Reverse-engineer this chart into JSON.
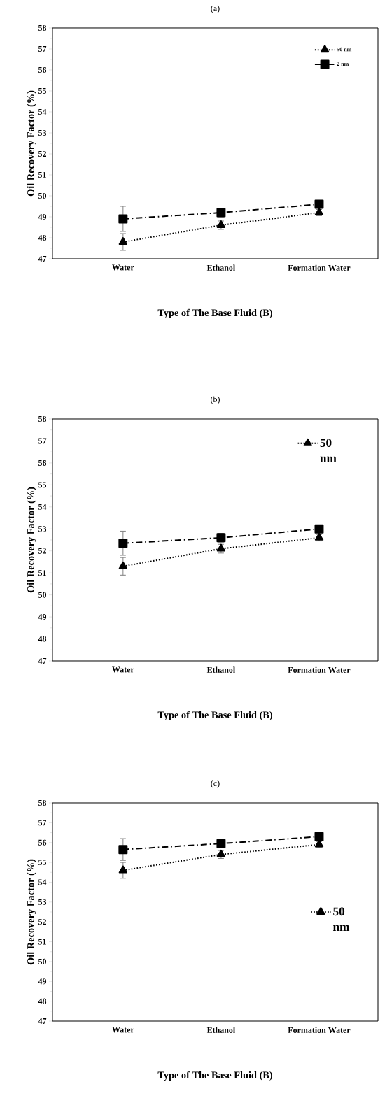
{
  "chart_data": [
    {
      "type": "line",
      "title": "(a)",
      "xlabel": "Type of The Base Fluid (B)",
      "ylabel": "Oil Recovery Factor (%)",
      "categories": [
        "Water",
        "Ethanol",
        "Formation Water"
      ],
      "ylim": [
        47,
        58
      ],
      "yticks": [
        47,
        48,
        49,
        50,
        51,
        52,
        53,
        54,
        55,
        56,
        57,
        58
      ],
      "legend": "top right",
      "series": [
        {
          "name": "50 nm",
          "color": "#000000",
          "marker": "triangle",
          "line_style": "dotted",
          "values": [
            47.8,
            48.6,
            49.2
          ],
          "errors": [
            0.4,
            0.2,
            0.15
          ]
        },
        {
          "name": "2 nm",
          "color": "#000000",
          "marker": "square",
          "line_style": "dashed",
          "values": [
            48.9,
            49.2,
            49.6
          ],
          "errors": [
            0.6,
            0.2,
            0.15
          ]
        }
      ]
    },
    {
      "type": "line",
      "title": "(b)",
      "xlabel": "Type of The Base Fluid (B)",
      "ylabel": "Oil Recovery Factor (%)",
      "categories": [
        "Water",
        "Ethanol",
        "Formation Water"
      ],
      "ylim": [
        47,
        58
      ],
      "yticks": [
        47,
        48,
        49,
        50,
        51,
        52,
        53,
        54,
        55,
        56,
        57,
        58
      ],
      "legend": "top right",
      "series": [
        {
          "name": "50 nm",
          "color": "#000000",
          "marker": "triangle",
          "line_style": "dotted",
          "values": [
            51.3,
            52.1,
            52.6
          ],
          "errors": [
            0.4,
            0.2,
            0.15
          ]
        },
        {
          "color": "#000000",
          "marker": "square",
          "line_style": "dashed",
          "values": [
            52.35,
            52.6,
            53.0
          ],
          "errors": [
            0.55,
            0.2,
            0.15
          ]
        }
      ]
    },
    {
      "type": "line",
      "title": "(c)",
      "xlabel": "Type of The Base Fluid (B)",
      "ylabel": "Oil Recovery Factor (%)",
      "categories": [
        "Water",
        "Ethanol",
        "Formation Water"
      ],
      "ylim": [
        47,
        58
      ],
      "yticks": [
        47,
        48,
        49,
        50,
        51,
        52,
        53,
        54,
        55,
        56,
        57,
        58
      ],
      "legend": "right",
      "series": [
        {
          "name": "50 nm",
          "color": "#000000",
          "marker": "triangle",
          "line_style": "dotted",
          "values": [
            54.6,
            55.4,
            55.9
          ],
          "errors": [
            0.4,
            0.2,
            0.15
          ]
        },
        {
          "color": "#000000",
          "marker": "square",
          "line_style": "dashed",
          "values": [
            55.65,
            55.95,
            56.3
          ],
          "errors": [
            0.55,
            0.2,
            0.15
          ]
        }
      ]
    }
  ]
}
